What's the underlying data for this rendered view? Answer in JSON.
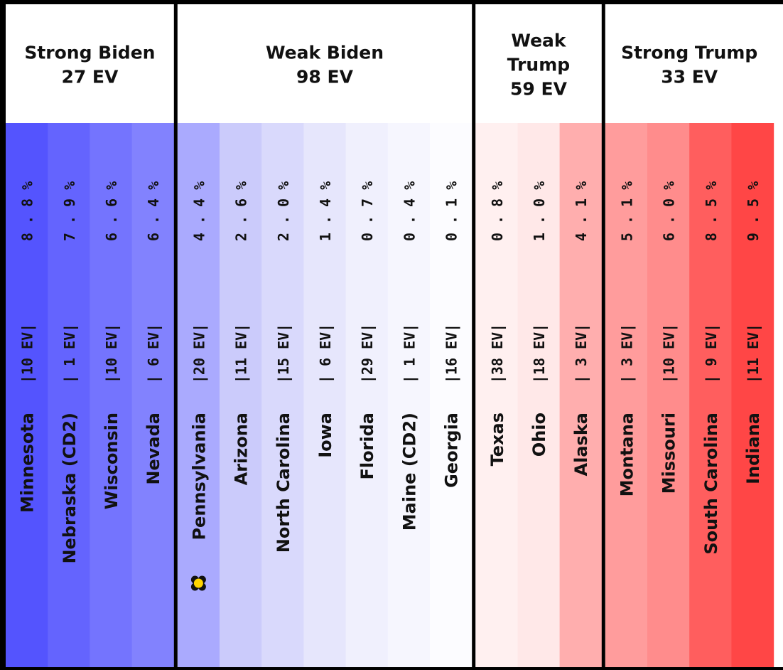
{
  "chart_data": {
    "type": "table",
    "groups": [
      {
        "name": "Strong Biden",
        "ev_label": "27 EV",
        "states": [
          {
            "name": "Minnesota",
            "ev": "10",
            "margin": "8.8%",
            "color": "#5454fe"
          },
          {
            "name": "Nebraska (CD2)",
            "ev": "1",
            "margin": "7.9%",
            "color": "#6464fe"
          },
          {
            "name": "Wisconsin",
            "ev": "10",
            "margin": "6.6%",
            "color": "#7474fe"
          },
          {
            "name": "Nevada",
            "ev": "6",
            "margin": "6.4%",
            "color": "#8282fe"
          }
        ]
      },
      {
        "name": "Weak Biden",
        "ev_label": "98 EV",
        "states": [
          {
            "name": "Pennsylvania",
            "ev": "20",
            "margin": "4.4%",
            "color": "#aaaafe",
            "marker": "flower"
          },
          {
            "name": "Arizona",
            "ev": "11",
            "margin": "2.6%",
            "color": "#cbcbfb"
          },
          {
            "name": "North Carolina",
            "ev": "15",
            "margin": "2.0%",
            "color": "#d9d9fc"
          },
          {
            "name": "Iowa",
            "ev": "6",
            "margin": "1.4%",
            "color": "#e6e6fc"
          },
          {
            "name": "Florida",
            "ev": "29",
            "margin": "0.7%",
            "color": "#f0f0fd"
          },
          {
            "name": "Maine (CD2)",
            "ev": "1",
            "margin": "0.4%",
            "color": "#f6f6fe"
          },
          {
            "name": "Georgia",
            "ev": "16",
            "margin": "0.1%",
            "color": "#fcfcff"
          }
        ]
      },
      {
        "name_lines": [
          "Weak",
          "Trump"
        ],
        "ev_label": "59 EV",
        "states": [
          {
            "name": "Texas",
            "ev": "38",
            "margin": "0.8%",
            "color": "#fff0f0"
          },
          {
            "name": "Ohio",
            "ev": "18",
            "margin": "1.0%",
            "color": "#ffe8e8"
          },
          {
            "name": "Alaska",
            "ev": "3",
            "margin": "4.1%",
            "color": "#ffaeae"
          }
        ]
      },
      {
        "name": "Strong Trump",
        "ev_label": "33 EV",
        "states": [
          {
            "name": "Montana",
            "ev": "3",
            "margin": "5.1%",
            "color": "#ff9c9c"
          },
          {
            "name": "Missouri",
            "ev": "10",
            "margin": "6.0%",
            "color": "#ff8c8c"
          },
          {
            "name": "South Carolina",
            "ev": "9",
            "margin": "8.5%",
            "color": "#ff5e5e"
          },
          {
            "name": "Indiana",
            "ev": "11",
            "margin": "9.5%",
            "color": "#ff4646"
          }
        ]
      }
    ]
  }
}
